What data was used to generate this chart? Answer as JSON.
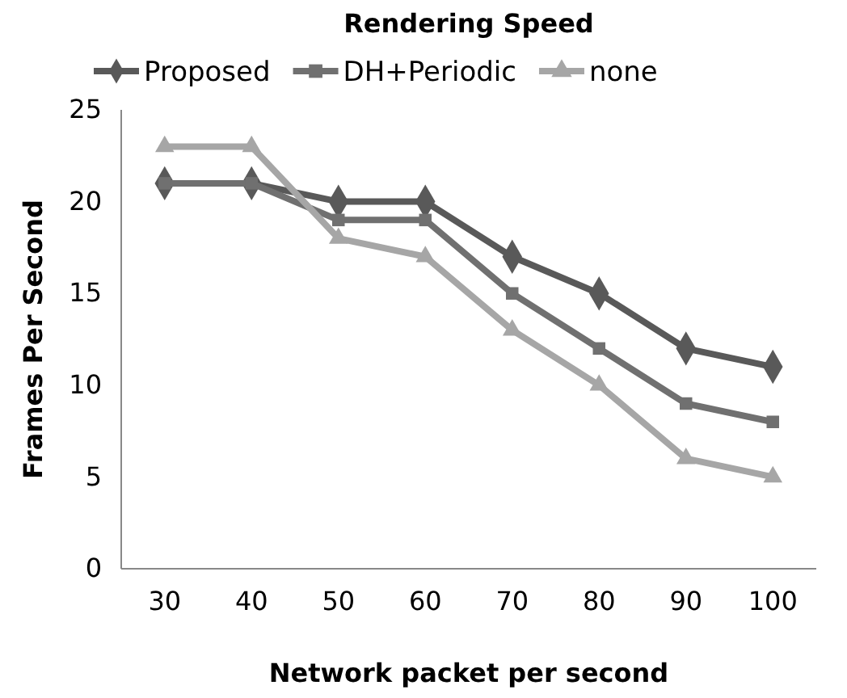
{
  "chart_data": {
    "type": "line",
    "title": "Rendering Speed",
    "xlabel": "Network packet per second",
    "ylabel": "Frames Per Second",
    "categories": [
      "30",
      "40",
      "50",
      "60",
      "70",
      "80",
      "90",
      "100"
    ],
    "series": [
      {
        "name": "Proposed",
        "color": "#595959",
        "marker": "diamond",
        "values": [
          21,
          21,
          20,
          20,
          17,
          15,
          12,
          11
        ]
      },
      {
        "name": "DH+Periodic",
        "color": "#707070",
        "marker": "square",
        "values": [
          21,
          21,
          19,
          19,
          15,
          12,
          9,
          8
        ]
      },
      {
        "name": "none",
        "color": "#a6a6a6",
        "marker": "triangle",
        "values": [
          23,
          23,
          18,
          17,
          13,
          10,
          6,
          5
        ]
      }
    ],
    "ylim": [
      0,
      25
    ],
    "yticks": [
      0,
      5,
      10,
      15,
      20,
      25
    ],
    "grid": false,
    "legend": "top"
  }
}
